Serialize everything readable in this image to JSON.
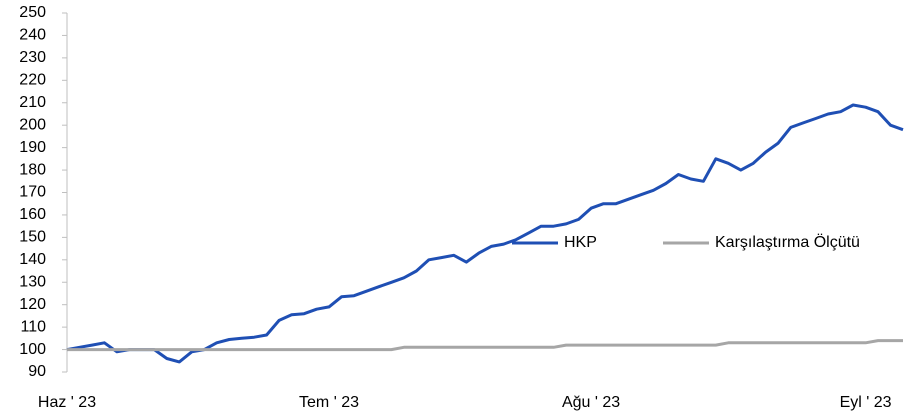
{
  "chart_data": {
    "type": "line",
    "categories": [
      "Haz ' 23",
      null,
      null,
      null,
      null,
      null,
      null,
      null,
      null,
      null,
      null,
      null,
      null,
      null,
      null,
      null,
      null,
      null,
      null,
      null,
      null,
      "Tem ' 23",
      null,
      null,
      null,
      null,
      null,
      null,
      null,
      null,
      null,
      null,
      null,
      null,
      null,
      null,
      null,
      null,
      null,
      null,
      null,
      null,
      "Ağu ' 23",
      null,
      null,
      null,
      null,
      null,
      null,
      null,
      null,
      null,
      null,
      null,
      null,
      null,
      null,
      null,
      null,
      null,
      null,
      null,
      null,
      null,
      "Eyl ' 23",
      null,
      null,
      null
    ],
    "series": [
      {
        "name": "HKP",
        "color": "#1f4fb4",
        "values": [
          100,
          101,
          102,
          103,
          99,
          100,
          100,
          100,
          96,
          94.5,
          99,
          100,
          103,
          104.5,
          105,
          105.5,
          106.5,
          113,
          115.5,
          116,
          118,
          119,
          123.5,
          124,
          126,
          128,
          130,
          132,
          135,
          140,
          141,
          142,
          139,
          143,
          146,
          147,
          149,
          152,
          155,
          155,
          156,
          158,
          163,
          165,
          165,
          167,
          169,
          171,
          174,
          178,
          176,
          175,
          185,
          183,
          180,
          183,
          188,
          192,
          199,
          201,
          203,
          205,
          206,
          209,
          208,
          206,
          200,
          198
        ]
      },
      {
        "name": "Karşılaştırma Ölçütü",
        "color": "#a6a6a6",
        "values": [
          100,
          100,
          100,
          100,
          100,
          100,
          100,
          100,
          100,
          100,
          100,
          100,
          100,
          100,
          100,
          100,
          100,
          100,
          100,
          100,
          100,
          100,
          100,
          100,
          100,
          100,
          100,
          101,
          101,
          101,
          101,
          101,
          101,
          101,
          101,
          101,
          101,
          101,
          101,
          101,
          102,
          102,
          102,
          102,
          102,
          102,
          102,
          102,
          102,
          102,
          102,
          102,
          102,
          103,
          103,
          103,
          103,
          103,
          103,
          103,
          103,
          103,
          103,
          103,
          103,
          104,
          104,
          104
        ]
      }
    ],
    "ylim": [
      90,
      250
    ],
    "yticks": [
      90,
      100,
      110,
      120,
      130,
      140,
      150,
      160,
      170,
      180,
      190,
      200,
      210,
      220,
      230,
      240,
      250
    ],
    "legend": "center"
  }
}
